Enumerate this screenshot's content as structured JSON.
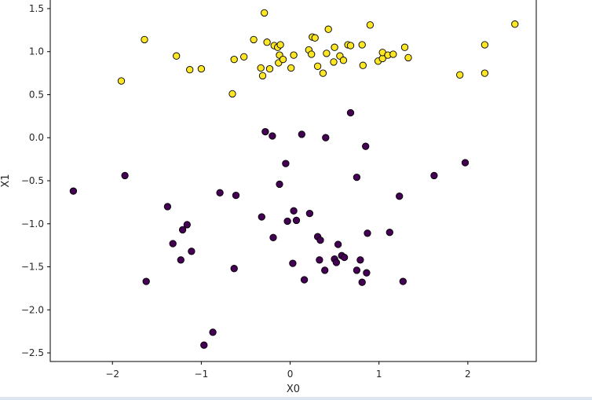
{
  "chart_data": {
    "type": "scatter",
    "xlabel": "X0",
    "ylabel": "X1",
    "xlim": [
      -2.7,
      2.77
    ],
    "ylim": [
      -2.6,
      1.6
    ],
    "xticks": [
      -2,
      -1,
      0,
      1,
      2
    ],
    "yticks": [
      -2.5,
      -2.0,
      -1.5,
      -1.0,
      -0.5,
      0.0,
      0.5,
      1.0,
      1.5
    ],
    "grid": false,
    "legend": "none",
    "series": [
      {
        "color": "#fde725",
        "points": [
          [
            -1.9,
            0.66
          ],
          [
            -1.64,
            1.14
          ],
          [
            -1.28,
            0.95
          ],
          [
            -1.13,
            0.79
          ],
          [
            -1.0,
            0.8
          ],
          [
            -0.65,
            0.51
          ],
          [
            -0.63,
            0.91
          ],
          [
            -0.52,
            0.94
          ],
          [
            -0.41,
            1.14
          ],
          [
            -0.33,
            0.81
          ],
          [
            -0.31,
            0.72
          ],
          [
            -0.29,
            1.45
          ],
          [
            -0.26,
            1.11
          ],
          [
            -0.23,
            0.8
          ],
          [
            -0.18,
            1.07
          ],
          [
            -0.14,
            1.05
          ],
          [
            -0.13,
            0.87
          ],
          [
            -0.12,
            0.96
          ],
          [
            -0.11,
            1.08
          ],
          [
            -0.08,
            0.91
          ],
          [
            0.01,
            0.81
          ],
          [
            0.04,
            0.96
          ],
          [
            0.21,
            1.02
          ],
          [
            0.24,
            0.97
          ],
          [
            0.25,
            1.17
          ],
          [
            0.28,
            1.16
          ],
          [
            0.31,
            0.83
          ],
          [
            0.37,
            0.75
          ],
          [
            0.41,
            0.98
          ],
          [
            0.43,
            1.26
          ],
          [
            0.49,
            0.88
          ],
          [
            0.5,
            1.05
          ],
          [
            0.56,
            0.95
          ],
          [
            0.6,
            0.9
          ],
          [
            0.65,
            1.08
          ],
          [
            0.68,
            1.07
          ],
          [
            0.82,
            0.84
          ],
          [
            0.81,
            1.08
          ],
          [
            0.9,
            1.31
          ],
          [
            0.99,
            0.89
          ],
          [
            1.04,
            0.92
          ],
          [
            1.04,
            0.99
          ],
          [
            1.1,
            0.96
          ],
          [
            1.16,
            0.97
          ],
          [
            1.29,
            1.05
          ],
          [
            1.33,
            0.93
          ],
          [
            1.91,
            0.73
          ],
          [
            2.19,
            1.08
          ],
          [
            2.19,
            0.75
          ],
          [
            2.53,
            1.32
          ]
        ]
      },
      {
        "color": "#440154",
        "points": [
          [
            -2.44,
            -0.62
          ],
          [
            -1.86,
            -0.44
          ],
          [
            -1.62,
            -1.67
          ],
          [
            -1.38,
            -0.8
          ],
          [
            -1.32,
            -1.23
          ],
          [
            -1.23,
            -1.42
          ],
          [
            -1.21,
            -1.07
          ],
          [
            -1.16,
            -1.01
          ],
          [
            -1.11,
            -1.32
          ],
          [
            -0.97,
            -2.41
          ],
          [
            -0.87,
            -2.26
          ],
          [
            -0.79,
            -0.64
          ],
          [
            -0.63,
            -1.52
          ],
          [
            -0.61,
            -0.67
          ],
          [
            -0.32,
            -0.92
          ],
          [
            -0.28,
            0.07
          ],
          [
            -0.2,
            0.02
          ],
          [
            -0.19,
            -1.16
          ],
          [
            -0.12,
            -0.54
          ],
          [
            -0.05,
            -0.3
          ],
          [
            -0.03,
            -0.97
          ],
          [
            0.03,
            -1.46
          ],
          [
            0.04,
            -0.85
          ],
          [
            0.07,
            -0.96
          ],
          [
            0.13,
            0.04
          ],
          [
            0.16,
            -1.65
          ],
          [
            0.22,
            -0.88
          ],
          [
            0.31,
            -1.15
          ],
          [
            0.33,
            -1.42
          ],
          [
            0.34,
            -1.19
          ],
          [
            0.39,
            -1.54
          ],
          [
            0.4,
            0.0
          ],
          [
            0.5,
            -1.41
          ],
          [
            0.52,
            -1.45
          ],
          [
            0.54,
            -1.24
          ],
          [
            0.58,
            -1.37
          ],
          [
            0.61,
            -1.39
          ],
          [
            0.68,
            0.29
          ],
          [
            0.75,
            -1.54
          ],
          [
            0.75,
            -0.46
          ],
          [
            0.79,
            -1.42
          ],
          [
            0.81,
            -1.68
          ],
          [
            0.85,
            -0.1
          ],
          [
            0.86,
            -1.57
          ],
          [
            0.87,
            -1.11
          ],
          [
            1.12,
            -1.1
          ],
          [
            1.23,
            -0.68
          ],
          [
            1.27,
            -1.67
          ],
          [
            1.62,
            -0.44
          ],
          [
            1.97,
            -0.29
          ]
        ]
      }
    ]
  }
}
